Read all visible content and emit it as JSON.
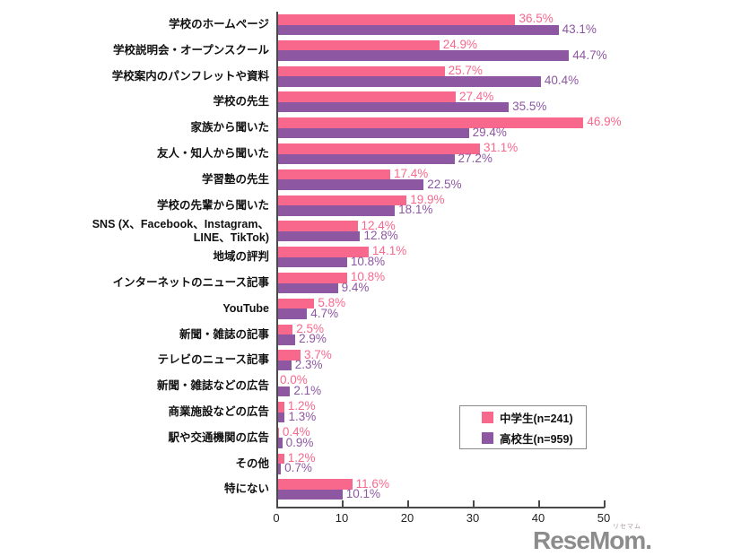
{
  "chart_data": {
    "type": "bar",
    "orientation": "horizontal",
    "title": "",
    "categories": [
      "学校のホームページ",
      "学校説明会・オープンスクール",
      "学校案内のパンフレットや資料",
      "学校の先生",
      "家族から聞いた",
      "友人・知人から聞いた",
      "学習塾の先生",
      "学校の先輩から聞いた",
      "SNS (X、Facebook、Instagram、\nLINE、TikTok)",
      "地域の評判",
      "インターネットのニュース記事",
      "YouTube",
      "新聞・雑誌の記事",
      "テレビのニュース記事",
      "新聞・雑誌などの広告",
      "商業施設などの広告",
      "駅や交通機関の広告",
      "その他",
      "特にない"
    ],
    "series": [
      {
        "name": "中学生(n=241)",
        "color": "#f8688c",
        "values": [
          36.5,
          24.9,
          25.7,
          27.4,
          46.9,
          31.1,
          17.4,
          19.9,
          12.4,
          14.1,
          10.8,
          5.8,
          2.5,
          3.7,
          0.0,
          1.2,
          0.4,
          1.2,
          11.6
        ]
      },
      {
        "name": "高校生(n=959)",
        "color": "#8e57a2",
        "values": [
          43.1,
          44.7,
          40.4,
          35.5,
          29.4,
          27.2,
          22.5,
          18.1,
          12.8,
          10.8,
          9.4,
          4.7,
          2.9,
          2.3,
          2.1,
          1.3,
          0.9,
          0.7,
          10.1
        ]
      }
    ],
    "xlim": [
      0,
      50
    ],
    "xticks": [
      0,
      10,
      20,
      30,
      40,
      50
    ],
    "value_suffix": "%",
    "grid": false,
    "legend_position": "inside-bottom-right"
  },
  "legend": {
    "items": [
      {
        "label": "中学生(n=241)",
        "color": "#f8688c"
      },
      {
        "label": "高校生(n=959)",
        "color": "#8e57a2"
      }
    ]
  },
  "logo": {
    "text": "ReseMom.",
    "ruby": "リセマム"
  }
}
